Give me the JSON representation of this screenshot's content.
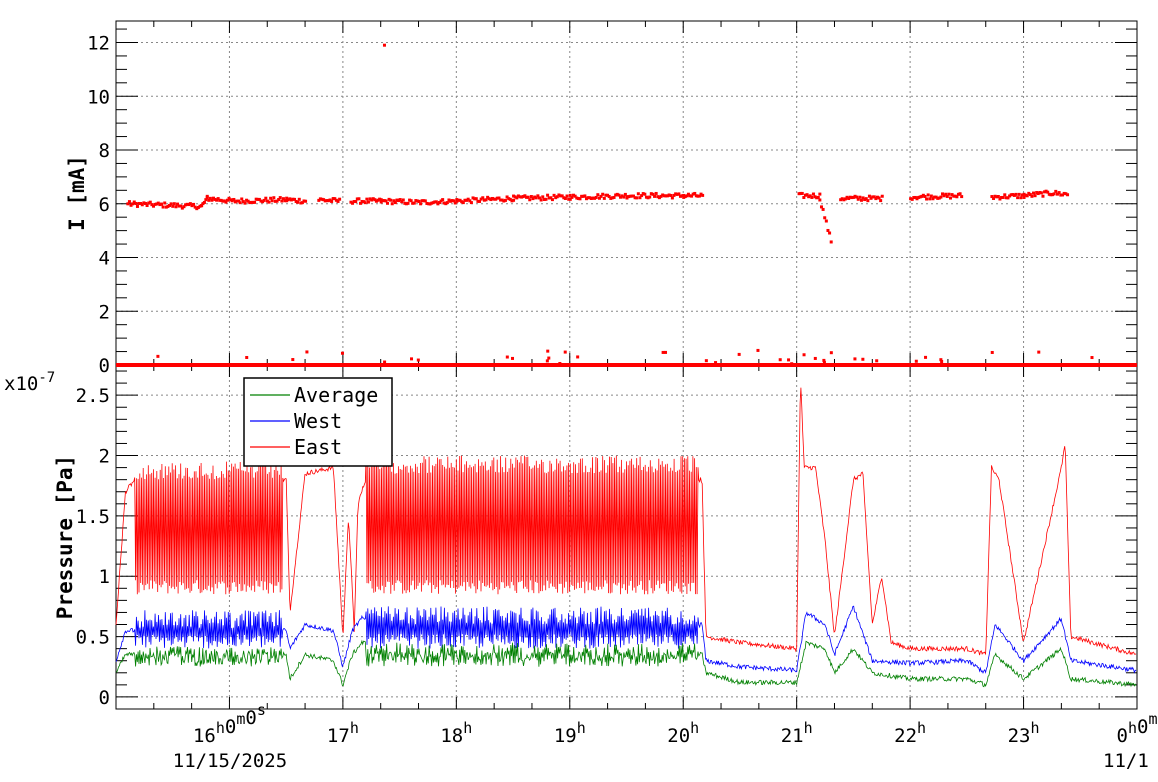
{
  "chart_data": [
    {
      "type": "scatter",
      "ylabel": "I [mA]",
      "ylim": [
        0,
        12.8
      ],
      "yticks": [
        "0",
        "2",
        "4",
        "6",
        "8",
        "10",
        "12"
      ],
      "grid": true,
      "series": [
        {
          "color": "#ff0000",
          "segments": [
            {
              "x": [
                "15:06",
                "15:45",
                "15:48",
                "16:02",
                "16:30",
                "16:40"
              ],
              "y": [
                6.0,
                5.9,
                6.2,
                6.1,
                6.15,
                6.1
              ]
            },
            {
              "x": [
                "16:47",
                "16:58"
              ],
              "y": [
                6.15,
                6.1
              ]
            },
            {
              "x": [
                "17:04",
                "17:20",
                "17:40",
                "18:00",
                "18:30",
                "19:00",
                "19:30",
                "20:00",
                "20:10"
              ],
              "y": [
                6.1,
                6.1,
                6.05,
                6.1,
                6.2,
                6.25,
                6.3,
                6.3,
                6.3
              ]
            },
            {
              "x": [
                "21:01",
                "21:12"
              ],
              "y": [
                6.3,
                6.3
              ]
            },
            {
              "x": [
                "21:12",
                "21:18"
              ],
              "y": [
                6.2,
                4.6
              ]
            },
            {
              "x": [
                "21:23",
                "21:45"
              ],
              "y": [
                6.2,
                6.2
              ]
            },
            {
              "x": [
                "22:00",
                "22:27"
              ],
              "y": [
                6.25,
                6.3
              ]
            },
            {
              "x": [
                "22:43",
                "23:00",
                "23:15",
                "23:23"
              ],
              "y": [
                6.25,
                6.3,
                6.4,
                6.35
              ]
            }
          ],
          "outliers": [
            {
              "x": "17:22",
              "y": 11.9
            }
          ],
          "baseline": 0.0
        }
      ]
    },
    {
      "type": "line",
      "ylabel": "Pressure [Pa]",
      "yscale_label": "x10",
      "yscale_exp": "-7",
      "ylim": [
        -0.1,
        2.75
      ],
      "yticks": [
        "0",
        "0.5",
        "1",
        "1.5",
        "2",
        "2.5"
      ],
      "xticks": [
        {
          "main": "16",
          "sup": "h",
          "tail": "0",
          "tailsup": "m",
          "tail2": "0",
          "tail2sup": "s"
        },
        {
          "main": "17",
          "sup": "h"
        },
        {
          "main": "18",
          "sup": "h"
        },
        {
          "main": "19",
          "sup": "h"
        },
        {
          "main": "20",
          "sup": "h"
        },
        {
          "main": "21",
          "sup": "h"
        },
        {
          "main": "22",
          "sup": "h"
        },
        {
          "main": "23",
          "sup": "h"
        },
        {
          "main": "0",
          "sup": "h",
          "tail": "0",
          "tailsup": "m"
        }
      ],
      "date_labels": [
        "11/15/2025",
        "11/1"
      ],
      "xrange": [
        "15:00",
        "24:00"
      ],
      "grid": true,
      "legend_position": "top-left",
      "series": [
        {
          "name": "Average",
          "color": "#008000",
          "points": [
            [
              "15:00",
              0.2
            ],
            [
              "15:05",
              0.35
            ],
            [
              "15:30",
              0.35
            ],
            [
              "16:00",
              0.35
            ],
            [
              "16:30",
              0.35
            ],
            [
              "16:32",
              0.15
            ],
            [
              "16:40",
              0.35
            ],
            [
              "16:55",
              0.3
            ],
            [
              "17:00",
              0.1
            ],
            [
              "17:05",
              0.35
            ],
            [
              "17:10",
              0.45
            ],
            [
              "17:40",
              0.35
            ],
            [
              "18:30",
              0.35
            ],
            [
              "19:30",
              0.35
            ],
            [
              "20:10",
              0.35
            ],
            [
              "20:12",
              0.2
            ],
            [
              "20:30",
              0.12
            ],
            [
              "21:00",
              0.12
            ],
            [
              "21:05",
              0.45
            ],
            [
              "21:15",
              0.4
            ],
            [
              "21:20",
              0.2
            ],
            [
              "21:30",
              0.4
            ],
            [
              "21:40",
              0.2
            ],
            [
              "22:00",
              0.15
            ],
            [
              "22:30",
              0.15
            ],
            [
              "22:40",
              0.1
            ],
            [
              "22:45",
              0.35
            ],
            [
              "23:00",
              0.15
            ],
            [
              "23:20",
              0.4
            ],
            [
              "23:25",
              0.15
            ],
            [
              "24:00",
              0.1
            ]
          ],
          "band": [
            [
              "15:10",
              0.25,
              0.42
            ],
            [
              "16:28",
              0.25,
              0.42
            ],
            [
              "17:12",
              0.25,
              0.45
            ],
            [
              "20:08",
              0.25,
              0.42
            ]
          ]
        },
        {
          "name": "West",
          "color": "#0000ff",
          "points": [
            [
              "15:00",
              0.3
            ],
            [
              "15:05",
              0.55
            ],
            [
              "15:30",
              0.55
            ],
            [
              "16:00",
              0.55
            ],
            [
              "16:30",
              0.55
            ],
            [
              "16:32",
              0.4
            ],
            [
              "16:40",
              0.6
            ],
            [
              "16:55",
              0.55
            ],
            [
              "17:00",
              0.25
            ],
            [
              "17:05",
              0.55
            ],
            [
              "17:10",
              0.65
            ],
            [
              "17:40",
              0.55
            ],
            [
              "18:30",
              0.55
            ],
            [
              "19:30",
              0.55
            ],
            [
              "20:10",
              0.6
            ],
            [
              "20:12",
              0.3
            ],
            [
              "20:30",
              0.25
            ],
            [
              "21:00",
              0.22
            ],
            [
              "21:05",
              0.7
            ],
            [
              "21:15",
              0.6
            ],
            [
              "21:20",
              0.35
            ],
            [
              "21:30",
              0.75
            ],
            [
              "21:40",
              0.3
            ],
            [
              "22:00",
              0.28
            ],
            [
              "22:30",
              0.3
            ],
            [
              "22:40",
              0.2
            ],
            [
              "22:45",
              0.6
            ],
            [
              "23:00",
              0.3
            ],
            [
              "23:20",
              0.65
            ],
            [
              "23:25",
              0.3
            ],
            [
              "24:00",
              0.22
            ]
          ],
          "band": [
            [
              "15:10",
              0.4,
              0.72
            ],
            [
              "16:28",
              0.4,
              0.72
            ],
            [
              "17:12",
              0.4,
              0.75
            ],
            [
              "20:08",
              0.4,
              0.72
            ]
          ]
        },
        {
          "name": "East",
          "color": "#ff0000",
          "points": [
            [
              "15:00",
              0.6
            ],
            [
              "15:05",
              1.7
            ],
            [
              "15:10",
              1.8
            ],
            [
              "16:30",
              1.8
            ],
            [
              "16:32",
              0.7
            ],
            [
              "16:40",
              1.85
            ],
            [
              "16:55",
              1.9
            ],
            [
              "17:00",
              0.5
            ],
            [
              "17:03",
              1.5
            ],
            [
              "17:06",
              0.55
            ],
            [
              "17:08",
              1.6
            ],
            [
              "17:12",
              1.8
            ],
            [
              "17:30",
              1.85
            ],
            [
              "20:10",
              1.8
            ],
            [
              "20:12",
              0.5
            ],
            [
              "20:30",
              0.45
            ],
            [
              "21:00",
              0.4
            ],
            [
              "21:02",
              2.65
            ],
            [
              "21:04",
              1.9
            ],
            [
              "21:10",
              1.9
            ],
            [
              "21:15",
              1.3
            ],
            [
              "21:20",
              0.5
            ],
            [
              "21:30",
              1.8
            ],
            [
              "21:35",
              1.85
            ],
            [
              "21:40",
              0.6
            ],
            [
              "21:45",
              1.0
            ],
            [
              "21:50",
              0.45
            ],
            [
              "22:00",
              0.4
            ],
            [
              "22:30",
              0.4
            ],
            [
              "22:40",
              0.35
            ],
            [
              "22:43",
              1.9
            ],
            [
              "22:47",
              1.8
            ],
            [
              "23:00",
              0.45
            ],
            [
              "23:20",
              1.9
            ],
            [
              "23:22",
              2.1
            ],
            [
              "23:25",
              0.5
            ],
            [
              "24:00",
              0.35
            ]
          ],
          "band": [
            [
              "15:10",
              0.85,
              1.95
            ],
            [
              "16:28",
              0.8,
              1.95
            ],
            [
              "17:12",
              0.85,
              2.0
            ],
            [
              "20:08",
              0.85,
              1.95
            ]
          ]
        }
      ]
    }
  ]
}
